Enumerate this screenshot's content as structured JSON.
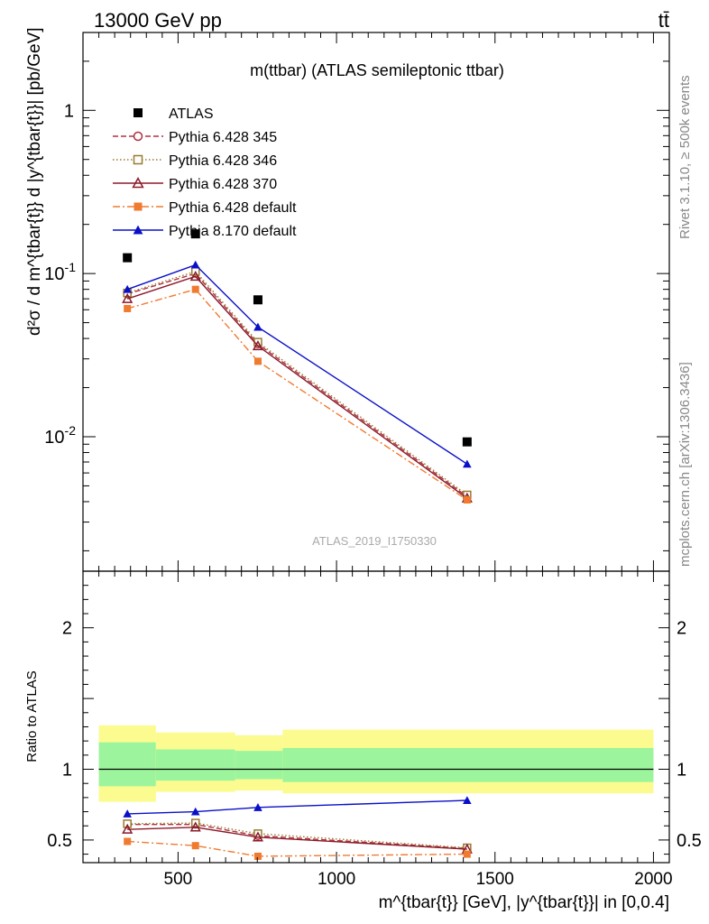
{
  "header": {
    "beam": "13000 GeV pp",
    "process": "tt̄",
    "plot_title": "m(ttbar) (ATLAS semileptonic ttbar)",
    "analysis_id": "ATLAS_2019_I1750330",
    "rivet_label": "Rivet 3.1.10, ≥ 500k events",
    "source_label": "mcplots.cern.ch [arXiv:1306.3436]"
  },
  "chart_data": [
    {
      "type": "scatter",
      "panel": "main",
      "ylabel": "d²σ / d m^{tbar{t}} d |y^{tbar{t}}| [pb/GeV]",
      "y_scale": "log",
      "xlim": [
        200,
        2050
      ],
      "ylim": [
        0.0015,
        3.0
      ],
      "y_ticks": [
        {
          "value": 1,
          "label": "1"
        },
        {
          "value": 0.1,
          "label": "10^-1"
        },
        {
          "value": 0.01,
          "label": "10^-2"
        }
      ],
      "legend_position": "top-left",
      "series": [
        {
          "name": "ATLAS",
          "color": "#000000",
          "marker": "square-filled",
          "line": "none",
          "x": [
            340,
            555,
            752,
            1412
          ],
          "y": [
            0.125,
            0.175,
            0.069,
            0.0093
          ]
        },
        {
          "name": "Pythia 6.428 345",
          "color": "#b03040",
          "marker": "circle-open",
          "line": "dashed",
          "x": [
            340,
            555,
            752,
            1412
          ],
          "y": [
            0.075,
            0.1,
            0.037,
            0.0043
          ]
        },
        {
          "name": "Pythia 6.428 346",
          "color": "#9a7a30",
          "marker": "square-open",
          "line": "dotted",
          "x": [
            340,
            555,
            752,
            1412
          ],
          "y": [
            0.076,
            0.103,
            0.038,
            0.0044
          ]
        },
        {
          "name": "Pythia 6.428 370",
          "color": "#8b1a2a",
          "marker": "triangle-open",
          "line": "solid",
          "x": [
            340,
            555,
            752,
            1412
          ],
          "y": [
            0.07,
            0.096,
            0.036,
            0.0042
          ]
        },
        {
          "name": "Pythia 6.428 default",
          "color": "#f07a30",
          "marker": "square-filled",
          "line": "dashdot",
          "x": [
            340,
            555,
            752,
            1412
          ],
          "y": [
            0.061,
            0.08,
            0.029,
            0.0041
          ]
        },
        {
          "name": "Pythia 8.170 default",
          "color": "#0a10c8",
          "marker": "triangle-filled",
          "line": "solid",
          "x": [
            340,
            555,
            752,
            1412
          ],
          "y": [
            0.08,
            0.113,
            0.047,
            0.0068
          ]
        }
      ]
    },
    {
      "type": "line",
      "panel": "ratio",
      "ylabel": "Ratio to ATLAS",
      "xlabel": "m^{tbar{t}} [GeV], |y^{tbar{t}}| in [0,0.4]",
      "xlim": [
        200,
        2050
      ],
      "ylim": [
        0.34,
        2.4
      ],
      "x_ticks": [
        500,
        1000,
        1500,
        2000
      ],
      "y_ticks": [
        {
          "value": 0.5,
          "label": "0.5"
        },
        {
          "value": 1,
          "label": "1"
        },
        {
          "value": 2,
          "label": "2"
        }
      ],
      "reference_line": 1,
      "bands": [
        {
          "x0": 250,
          "x1": 430,
          "inner": [
            0.88,
            1.19
          ],
          "outer": [
            0.77,
            1.31
          ]
        },
        {
          "x0": 430,
          "x1": 680,
          "inner": [
            0.92,
            1.14
          ],
          "outer": [
            0.84,
            1.26
          ]
        },
        {
          "x0": 680,
          "x1": 830,
          "inner": [
            0.93,
            1.13
          ],
          "outer": [
            0.85,
            1.24
          ]
        },
        {
          "x0": 830,
          "x1": 2000,
          "inner": [
            0.91,
            1.15
          ],
          "outer": [
            0.83,
            1.28
          ]
        }
      ],
      "band_colors": {
        "inner": "#9cf59c",
        "outer": "#fbfb8f"
      },
      "series": [
        {
          "name": "Pythia 6.428 345",
          "x": [
            340,
            555,
            752,
            1412
          ],
          "y": [
            0.61,
            0.61,
            0.53,
            0.44
          ]
        },
        {
          "name": "Pythia 6.428 346",
          "x": [
            340,
            555,
            752,
            1412
          ],
          "y": [
            0.615,
            0.62,
            0.545,
            0.445
          ]
        },
        {
          "name": "Pythia 6.428 370",
          "x": [
            340,
            555,
            752,
            1412
          ],
          "y": [
            0.575,
            0.59,
            0.52,
            0.435
          ]
        },
        {
          "name": "Pythia 6.428 default",
          "x": [
            340,
            555,
            752,
            1412
          ],
          "y": [
            0.49,
            0.46,
            0.385,
            0.4
          ]
        },
        {
          "name": "Pythia 8.170 default",
          "x": [
            340,
            555,
            752,
            1412
          ],
          "y": [
            0.685,
            0.7,
            0.73,
            0.78
          ]
        }
      ]
    }
  ]
}
